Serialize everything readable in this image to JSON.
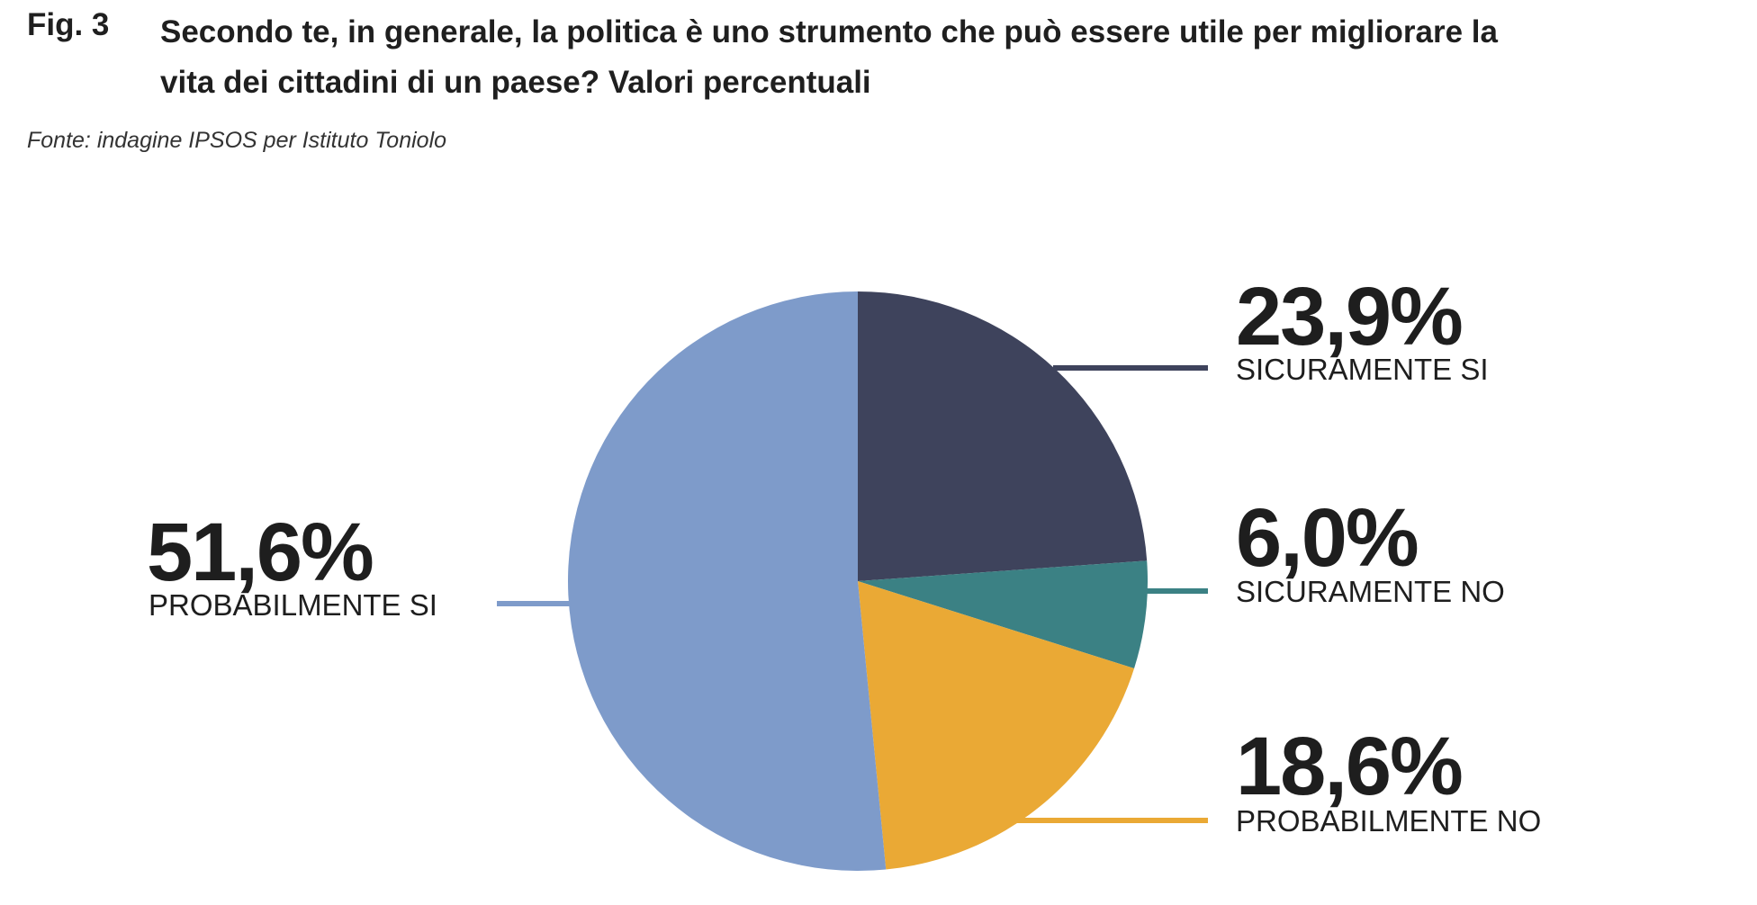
{
  "figure": {
    "label": "Fig. 3",
    "title": "Secondo te, in generale, la politica è uno strumento che può essere utile per migliorare la vita dei cittadini di un paese? Valori percentuali",
    "source": "Fonte: indagine IPSOS per Istituto Toniolo"
  },
  "chart_data": {
    "type": "pie",
    "title": "Secondo te, in generale, la politica è uno strumento che può essere utile per migliorare la vita dei cittadini di un paese? Valori percentuali",
    "slices": [
      {
        "label": "SICURAMENTE SI",
        "value": 23.9,
        "display": "23,9%",
        "color": "#3e435c"
      },
      {
        "label": "SICURAMENTE NO",
        "value": 6.0,
        "display": "6,0%",
        "color": "#3b8184"
      },
      {
        "label": "PROBABILMENTE NO",
        "value": 18.6,
        "display": "18,6%",
        "color": "#eaa935"
      },
      {
        "label": "PROBABILMENTE SI",
        "value": 51.6,
        "display": "51,6%",
        "color": "#7e9bca"
      }
    ],
    "start_angle": "12 o'clock",
    "direction": "clockwise",
    "legend": "none (direct labels)"
  }
}
